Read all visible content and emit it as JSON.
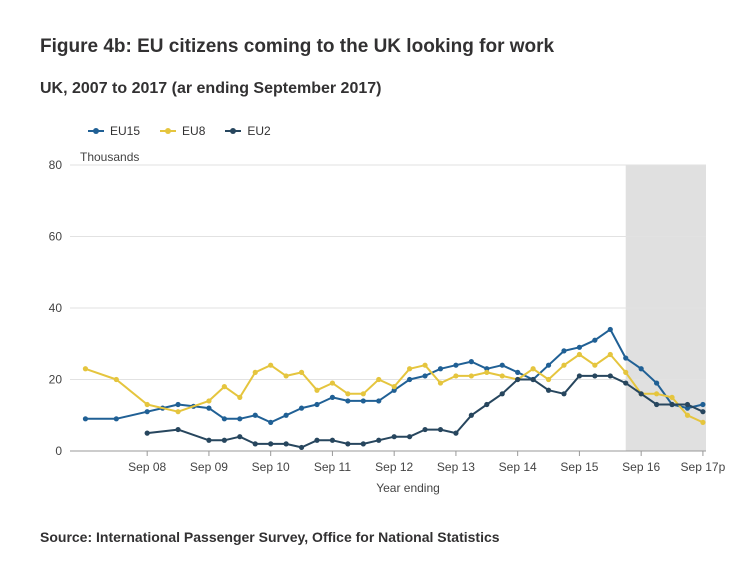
{
  "title": "Figure 4b: EU citizens coming to the UK looking for work",
  "subtitle": "UK, 2007 to 2017 (ar ending September 2017)",
  "source": "Source: International Passenger Survey, Office for National Statistics",
  "chart_data": {
    "type": "line",
    "ylabel": "Thousands",
    "xlabel": "Year ending",
    "ylim": [
      0,
      80
    ],
    "yticks": [
      0,
      20,
      40,
      60,
      80
    ],
    "grid": true,
    "legend_position": "top-left",
    "shaded_region_start": 2016.5,
    "xticks": [
      {
        "x": 2008.75,
        "label": "Sep 08"
      },
      {
        "x": 2009.75,
        "label": "Sep 09"
      },
      {
        "x": 2010.75,
        "label": "Sep 10"
      },
      {
        "x": 2011.75,
        "label": "Sep 11"
      },
      {
        "x": 2012.75,
        "label": "Sep 12"
      },
      {
        "x": 2013.75,
        "label": "Sep 13"
      },
      {
        "x": 2014.75,
        "label": "Sep 14"
      },
      {
        "x": 2015.75,
        "label": "Sep 15"
      },
      {
        "x": 2016.75,
        "label": "Sep 16"
      },
      {
        "x": 2017.75,
        "label": "Sep 17p"
      }
    ],
    "xlim": [
      2007.5,
      2017.8
    ],
    "series": [
      {
        "name": "EU15",
        "color": "#206095",
        "points": [
          [
            2007.75,
            9
          ],
          [
            2008.25,
            9
          ],
          [
            2008.75,
            11
          ],
          [
            2009.0,
            12
          ],
          [
            2009.25,
            13
          ],
          [
            2009.5,
            12.5
          ],
          [
            2009.75,
            12
          ],
          [
            2010.0,
            9
          ],
          [
            2010.25,
            9
          ],
          [
            2010.5,
            10
          ],
          [
            2010.75,
            8
          ],
          [
            2011.0,
            10
          ],
          [
            2011.25,
            12
          ],
          [
            2011.5,
            13
          ],
          [
            2011.75,
            15
          ],
          [
            2012.0,
            14
          ],
          [
            2012.25,
            14
          ],
          [
            2012.5,
            14
          ],
          [
            2012.75,
            17
          ],
          [
            2013.0,
            20
          ],
          [
            2013.25,
            21
          ],
          [
            2013.5,
            23
          ],
          [
            2013.75,
            24
          ],
          [
            2014.0,
            25
          ],
          [
            2014.25,
            23
          ],
          [
            2014.5,
            24
          ],
          [
            2014.75,
            22
          ],
          [
            2015.0,
            20
          ],
          [
            2015.25,
            24
          ],
          [
            2015.5,
            28
          ],
          [
            2015.75,
            29
          ],
          [
            2016.0,
            31
          ],
          [
            2016.25,
            34
          ],
          [
            2016.5,
            26
          ],
          [
            2016.75,
            23
          ],
          [
            2017.0,
            19
          ],
          [
            2017.25,
            13
          ],
          [
            2017.5,
            12
          ],
          [
            2017.75,
            13
          ]
        ]
      },
      {
        "name": "EU8",
        "color": "#e5c53e",
        "points": [
          [
            2007.75,
            23
          ],
          [
            2008.25,
            20
          ],
          [
            2008.75,
            13
          ],
          [
            2009.25,
            11
          ],
          [
            2009.75,
            14
          ],
          [
            2010.0,
            18
          ],
          [
            2010.25,
            15
          ],
          [
            2010.5,
            22
          ],
          [
            2010.75,
            24
          ],
          [
            2011.0,
            21
          ],
          [
            2011.25,
            22
          ],
          [
            2011.5,
            17
          ],
          [
            2011.75,
            19
          ],
          [
            2012.0,
            16
          ],
          [
            2012.25,
            16
          ],
          [
            2012.5,
            20
          ],
          [
            2012.75,
            18
          ],
          [
            2013.0,
            23
          ],
          [
            2013.25,
            24
          ],
          [
            2013.5,
            19
          ],
          [
            2013.75,
            21
          ],
          [
            2014.0,
            21
          ],
          [
            2014.25,
            22
          ],
          [
            2014.5,
            21
          ],
          [
            2014.75,
            20
          ],
          [
            2015.0,
            23
          ],
          [
            2015.25,
            20
          ],
          [
            2015.5,
            24
          ],
          [
            2015.75,
            27
          ],
          [
            2016.0,
            24
          ],
          [
            2016.25,
            27
          ],
          [
            2016.5,
            22
          ],
          [
            2016.75,
            16
          ],
          [
            2017.0,
            16
          ],
          [
            2017.25,
            15
          ],
          [
            2017.5,
            10
          ],
          [
            2017.75,
            8
          ]
        ]
      },
      {
        "name": "EU2",
        "color": "#27465e",
        "points": [
          [
            2008.75,
            5
          ],
          [
            2009.25,
            6
          ],
          [
            2009.75,
            3
          ],
          [
            2010.0,
            3
          ],
          [
            2010.25,
            4
          ],
          [
            2010.5,
            2
          ],
          [
            2010.75,
            2
          ],
          [
            2011.0,
            2
          ],
          [
            2011.25,
            1
          ],
          [
            2011.5,
            3
          ],
          [
            2011.75,
            3
          ],
          [
            2012.0,
            2
          ],
          [
            2012.25,
            2
          ],
          [
            2012.5,
            3
          ],
          [
            2012.75,
            4
          ],
          [
            2013.0,
            4
          ],
          [
            2013.25,
            6
          ],
          [
            2013.5,
            6
          ],
          [
            2013.75,
            5
          ],
          [
            2014.0,
            10
          ],
          [
            2014.25,
            13
          ],
          [
            2014.5,
            16
          ],
          [
            2014.75,
            20
          ],
          [
            2015.0,
            20
          ],
          [
            2015.25,
            17
          ],
          [
            2015.5,
            16
          ],
          [
            2015.75,
            21
          ],
          [
            2016.0,
            21
          ],
          [
            2016.25,
            21
          ],
          [
            2016.5,
            19
          ],
          [
            2016.75,
            16
          ],
          [
            2017.0,
            13
          ],
          [
            2017.25,
            13
          ],
          [
            2017.5,
            13
          ],
          [
            2017.75,
            11
          ]
        ]
      }
    ]
  }
}
